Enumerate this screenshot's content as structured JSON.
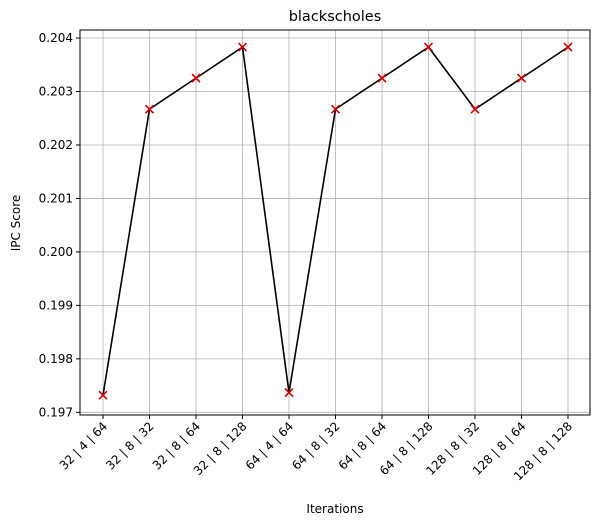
{
  "chart_data": {
    "type": "line",
    "title": "blackscholes",
    "xlabel": "Iterations",
    "ylabel": "IPC Score",
    "categories": [
      "32 | 4 | 64",
      "32 | 8 | 32",
      "32 | 8 | 64",
      "32 | 8 | 128",
      "64 | 4 | 64",
      "64 | 8 | 32",
      "64 | 8 | 64",
      "64 | 8 | 128",
      "128 | 8 | 32",
      "128 | 8 | 64",
      "128 | 8 | 128"
    ],
    "values": [
      0.19732,
      0.20267,
      0.20325,
      0.20383,
      0.19737,
      0.20267,
      0.20325,
      0.20383,
      0.20267,
      0.20325,
      0.20383
    ],
    "ylim": [
      0.19695,
      0.20415
    ],
    "yticks": [
      0.197,
      0.198,
      0.199,
      0.2,
      0.201,
      0.202,
      0.203,
      0.204
    ],
    "ytick_labels": [
      "0.197",
      "0.198",
      "0.199",
      "0.200",
      "0.201",
      "0.202",
      "0.203",
      "0.204"
    ],
    "grid": true,
    "line_color": "#000000",
    "marker": "x",
    "marker_color": "#cc0000",
    "grid_color": "#b0b0b0"
  }
}
